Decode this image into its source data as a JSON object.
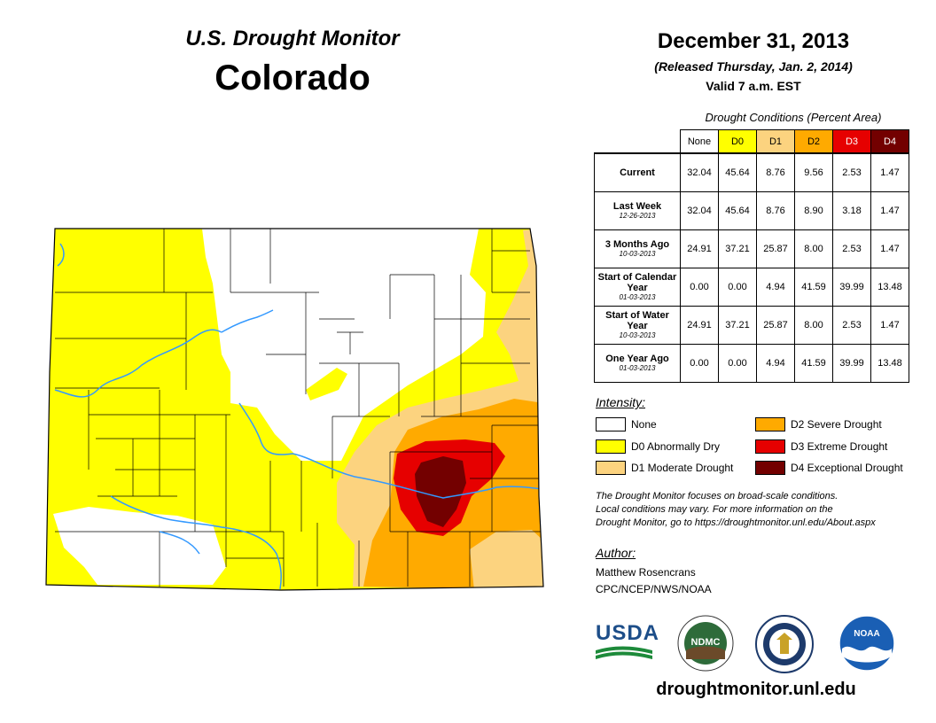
{
  "header": {
    "title": "U.S. Drought Monitor",
    "state": "Colorado",
    "date": "December 31, 2013",
    "released": "(Released Thursday, Jan. 2, 2014)",
    "valid": "Valid 7 a.m. EST"
  },
  "table": {
    "caption": "Drought Conditions (Percent Area)",
    "columns": [
      "None",
      "D0",
      "D1",
      "D2",
      "D3",
      "D4"
    ],
    "rows": [
      {
        "label": "Current",
        "date": "",
        "values": [
          "32.04",
          "45.64",
          "8.76",
          "9.56",
          "2.53",
          "1.47"
        ]
      },
      {
        "label": "Last Week",
        "date": "12-26-2013",
        "values": [
          "32.04",
          "45.64",
          "8.76",
          "8.90",
          "3.18",
          "1.47"
        ]
      },
      {
        "label": "3 Months Ago",
        "date": "10-03-2013",
        "values": [
          "24.91",
          "37.21",
          "25.87",
          "8.00",
          "2.53",
          "1.47"
        ]
      },
      {
        "label": "Start of Calendar Year",
        "date": "01-03-2013",
        "values": [
          "0.00",
          "0.00",
          "4.94",
          "41.59",
          "39.99",
          "13.48"
        ]
      },
      {
        "label": "Start of Water Year",
        "date": "10-03-2013",
        "values": [
          "24.91",
          "37.21",
          "25.87",
          "8.00",
          "2.53",
          "1.47"
        ]
      },
      {
        "label": "One Year Ago",
        "date": "01-03-2013",
        "values": [
          "0.00",
          "0.00",
          "4.94",
          "41.59",
          "39.99",
          "13.48"
        ]
      }
    ]
  },
  "legend": {
    "title": "Intensity:",
    "items": [
      {
        "label": "None",
        "color": "#ffffff"
      },
      {
        "label": "D0 Abnormally Dry",
        "color": "#ffff00"
      },
      {
        "label": "D1 Moderate Drought",
        "color": "#fcd37f"
      },
      {
        "label": "D2 Severe Drought",
        "color": "#ffaa00"
      },
      {
        "label": "D3 Extreme Drought",
        "color": "#e60000"
      },
      {
        "label": "D4 Exceptional Drought",
        "color": "#730000"
      }
    ]
  },
  "note": {
    "line1": "The Drought Monitor focuses on broad-scale conditions.",
    "line2": "Local conditions may vary. For more information on the",
    "line3": "Drought Monitor, go to https://droughtmonitor.unl.edu/About.aspx"
  },
  "author": {
    "title": "Author:",
    "name": "Matthew Rosencrans",
    "org": "CPC/NCEP/NWS/NOAA"
  },
  "logos": {
    "usda": "USDA",
    "ndmc": "NDMC",
    "noaa": "NOAA"
  },
  "footer": {
    "site": "droughtmonitor.unl.edu"
  },
  "colors": {
    "none": "#ffffff",
    "d0": "#ffff00",
    "d1": "#fcd37f",
    "d2": "#ffaa00",
    "d3": "#e60000",
    "d4": "#730000",
    "river": "#3399ff"
  }
}
